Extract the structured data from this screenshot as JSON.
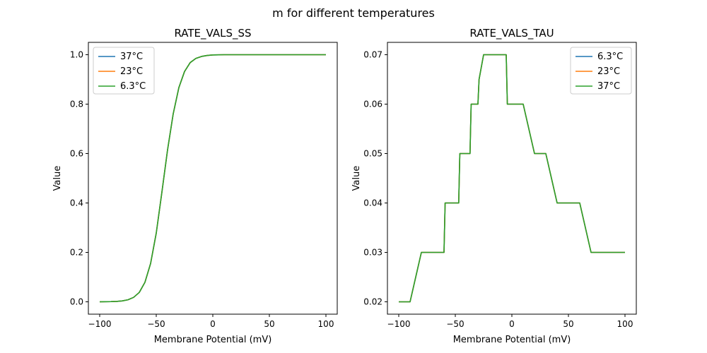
{
  "figure": {
    "suptitle": "m for different temperatures"
  },
  "chart_data": [
    {
      "type": "line",
      "title": "RATE_VALS_SS",
      "xlabel": "Membrane Potential (mV)",
      "ylabel": "Value",
      "xlim": [
        -110,
        110
      ],
      "ylim": [
        -0.05,
        1.05
      ],
      "xticks": [
        -100,
        -50,
        0,
        50,
        100
      ],
      "xtick_labels": [
        "−100",
        "−50",
        "0",
        "50",
        "100"
      ],
      "yticks": [
        0.0,
        0.2,
        0.4,
        0.6,
        0.8,
        1.0
      ],
      "ytick_labels": [
        "0.0",
        "0.2",
        "0.4",
        "0.6",
        "0.8",
        "1.0"
      ],
      "grid": false,
      "legend": "upper-left",
      "x": [
        -100,
        -95,
        -90,
        -85,
        -80,
        -75,
        -70,
        -65,
        -60,
        -55,
        -50,
        -45,
        -40,
        -35,
        -30,
        -25,
        -20,
        -15,
        -10,
        -5,
        0,
        5,
        10,
        20,
        30,
        40,
        50,
        60,
        70,
        80,
        90,
        100
      ],
      "series": [
        {
          "name": "37°C",
          "color": "#1f77b4",
          "values": [
            0.0002,
            0.0004,
            0.0008,
            0.0017,
            0.0037,
            0.0082,
            0.018,
            0.038,
            0.079,
            0.155,
            0.278,
            0.444,
            0.615,
            0.761,
            0.867,
            0.932,
            0.968,
            0.985,
            0.993,
            0.997,
            0.999,
            0.9995,
            1.0,
            1.0,
            1.0,
            1.0,
            1.0,
            1.0,
            1.0,
            1.0,
            1.0,
            1.0
          ]
        },
        {
          "name": "23°C",
          "color": "#ff7f0e",
          "values": [
            0.0002,
            0.0004,
            0.0008,
            0.0017,
            0.0037,
            0.0082,
            0.018,
            0.038,
            0.079,
            0.155,
            0.278,
            0.444,
            0.615,
            0.761,
            0.867,
            0.932,
            0.968,
            0.985,
            0.993,
            0.997,
            0.999,
            0.9995,
            1.0,
            1.0,
            1.0,
            1.0,
            1.0,
            1.0,
            1.0,
            1.0,
            1.0,
            1.0
          ]
        },
        {
          "name": "6.3°C",
          "color": "#2ca02c",
          "values": [
            0.0002,
            0.0004,
            0.0008,
            0.0017,
            0.0037,
            0.0082,
            0.018,
            0.038,
            0.079,
            0.155,
            0.278,
            0.444,
            0.615,
            0.761,
            0.867,
            0.932,
            0.968,
            0.985,
            0.993,
            0.997,
            0.999,
            0.9995,
            1.0,
            1.0,
            1.0,
            1.0,
            1.0,
            1.0,
            1.0,
            1.0,
            1.0,
            1.0
          ]
        }
      ]
    },
    {
      "type": "line",
      "title": "RATE_VALS_TAU",
      "xlabel": "Membrane Potential (mV)",
      "ylabel": "Value",
      "xlim": [
        -110,
        110
      ],
      "ylim": [
        0.0175,
        0.0725
      ],
      "xticks": [
        -100,
        -50,
        0,
        50,
        100
      ],
      "xtick_labels": [
        "−100",
        "−50",
        "0",
        "50",
        "100"
      ],
      "yticks": [
        0.02,
        0.03,
        0.04,
        0.05,
        0.06,
        0.07
      ],
      "ytick_labels": [
        "0.02",
        "0.03",
        "0.04",
        "0.05",
        "0.06",
        "0.07"
      ],
      "grid": false,
      "legend": "upper-right",
      "x": [
        -100,
        -90,
        -80,
        -60,
        -59,
        -47,
        -46,
        -37,
        -36,
        -30,
        -29,
        -25,
        -24,
        -5,
        -4,
        10,
        20,
        30,
        40,
        60,
        70,
        100
      ],
      "series": [
        {
          "name": "6.3°C",
          "color": "#1f77b4",
          "values": [
            0.02,
            0.02,
            0.03,
            0.03,
            0.04,
            0.04,
            0.05,
            0.05,
            0.06,
            0.06,
            0.065,
            0.07,
            0.07,
            0.07,
            0.06,
            0.06,
            0.05,
            0.05,
            0.04,
            0.04,
            0.03,
            0.03
          ]
        },
        {
          "name": "23°C",
          "color": "#ff7f0e",
          "values": [
            0.02,
            0.02,
            0.03,
            0.03,
            0.04,
            0.04,
            0.05,
            0.05,
            0.06,
            0.06,
            0.065,
            0.07,
            0.07,
            0.07,
            0.06,
            0.06,
            0.05,
            0.05,
            0.04,
            0.04,
            0.03,
            0.03
          ]
        },
        {
          "name": "37°C",
          "color": "#2ca02c",
          "values": [
            0.02,
            0.02,
            0.03,
            0.03,
            0.04,
            0.04,
            0.05,
            0.05,
            0.06,
            0.06,
            0.065,
            0.07,
            0.07,
            0.07,
            0.06,
            0.06,
            0.05,
            0.05,
            0.04,
            0.04,
            0.03,
            0.03
          ]
        }
      ]
    }
  ]
}
